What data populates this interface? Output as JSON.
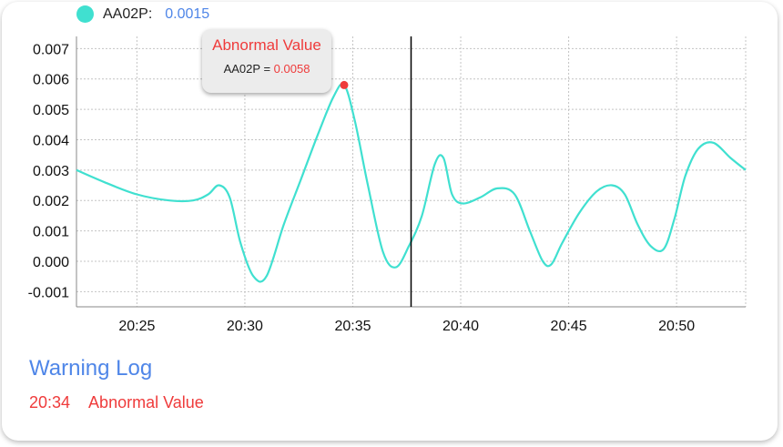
{
  "legend": {
    "name": "AA02P:",
    "value": "0.0015",
    "color": "#40e0d0"
  },
  "tooltip": {
    "title": "Abnormal Value",
    "series": "AA02P",
    "equals": " = ",
    "value": "0.0058"
  },
  "warning_log": {
    "title": "Warning Log",
    "entries": [
      {
        "time": "20:34",
        "message": "Abnormal Value"
      }
    ]
  },
  "colors": {
    "series": "#40e0d0",
    "alert": "#ef3b3b",
    "accent": "#4f86e8",
    "cursor": "#000000"
  },
  "chart_data": {
    "type": "line",
    "xlabel": "",
    "ylabel": "",
    "x_ticks": [
      "20:25",
      "20:30",
      "20:35",
      "20:40",
      "20:45",
      "20:50"
    ],
    "x_tick_minutes": [
      25,
      30,
      35,
      40,
      45,
      50
    ],
    "y_ticks": [
      "0.007",
      "0.006",
      "0.005",
      "0.004",
      "0.003",
      "0.002",
      "0.001",
      "0.000",
      "-0.001"
    ],
    "y_tick_values": [
      0.007,
      0.006,
      0.005,
      0.004,
      0.003,
      0.002,
      0.001,
      0.0,
      -0.001
    ],
    "xlim_minutes": [
      22.2,
      53.2
    ],
    "ylim": [
      -0.0015,
      0.0074
    ],
    "grid": true,
    "cursor_minute": 37.7,
    "highlight_point": {
      "minute": 34.6,
      "value": 0.0058
    },
    "series": [
      {
        "name": "AA02P",
        "x_minutes": [
          22.2,
          23.5,
          25,
          26.5,
          27.6,
          28.3,
          28.8,
          29.3,
          29.8,
          30.4,
          31,
          31.8,
          32.6,
          33.4,
          34.1,
          34.6,
          35.1,
          35.7,
          36.4,
          37,
          37.6,
          38.2,
          38.8,
          39.2,
          39.6,
          40.1,
          40.9,
          41.7,
          42.5,
          43.2,
          43.8,
          44.2,
          44.7,
          45.5,
          46.3,
          47.0,
          47.6,
          48.2,
          48.8,
          49.4,
          49.9,
          50.4,
          51.0,
          51.7,
          52.5,
          53.2
        ],
        "values": [
          0.003,
          0.0026,
          0.0022,
          0.002,
          0.002,
          0.0022,
          0.0025,
          0.0021,
          0.0006,
          -0.0005,
          -0.0005,
          0.0012,
          0.0027,
          0.0042,
          0.0054,
          0.0058,
          0.0046,
          0.0025,
          0.0003,
          -0.0002,
          0.0005,
          0.0015,
          0.0032,
          0.0034,
          0.0022,
          0.0019,
          0.0021,
          0.0024,
          0.0022,
          0.001,
          0.0,
          -0.0001,
          0.0006,
          0.0016,
          0.0023,
          0.0025,
          0.0022,
          0.0012,
          0.0005,
          0.0004,
          0.0014,
          0.0028,
          0.0037,
          0.0039,
          0.0034,
          0.003
        ]
      }
    ]
  }
}
